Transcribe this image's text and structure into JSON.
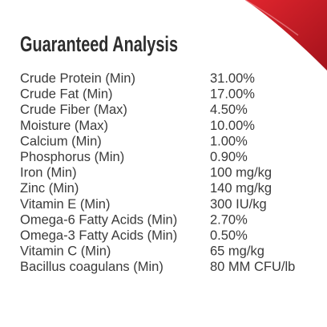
{
  "header": {
    "title": "Guaranteed Analysis"
  },
  "table": {
    "rows": [
      [
        "Crude Protein (Min)",
        "31.00%"
      ],
      [
        "Crude Fat (Min)",
        "17.00%"
      ],
      [
        "Crude Fiber (Max)",
        "4.50%"
      ],
      [
        "Moisture (Max)",
        "10.00%"
      ],
      [
        "Calcium (Min)",
        "1.00%"
      ],
      [
        "Phosphorus (Min)",
        "0.90%"
      ],
      [
        "Iron (Min)",
        "100 mg/kg"
      ],
      [
        "Zinc (Min)",
        "140 mg/kg"
      ],
      [
        "Vitamin E (Min)",
        "300 IU/kg"
      ],
      [
        "Omega-6 Fatty Acids (Min)",
        "2.70%"
      ],
      [
        "Omega-3 Fatty Acids (Min)",
        "0.50%"
      ],
      [
        "Vitamin C (Min)",
        "65 mg/kg"
      ],
      [
        "Bacillus coagulans (Min)",
        "80 MM CFU/lb"
      ]
    ]
  }
}
